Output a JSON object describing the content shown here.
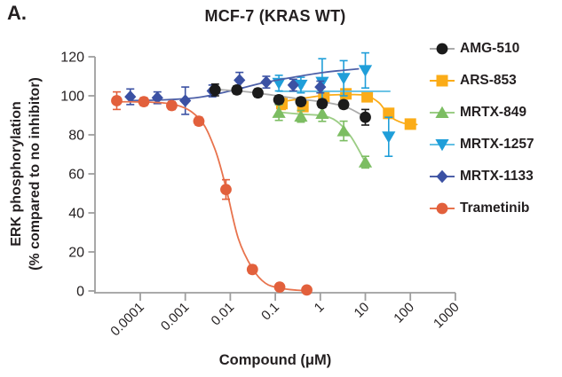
{
  "panel_label": "A.",
  "chart_data": {
    "type": "line",
    "title": "MCF-7 (KRAS WT)",
    "xlabel": "Compound (μM)",
    "ylabel_line1": "ERK phosphorylation",
    "ylabel_line2": "(% compared to no inhibitor)",
    "x_scale": "log",
    "xlim": [
      3e-05,
      1000
    ],
    "ylim": [
      0,
      120
    ],
    "x_ticks": [
      0.0001,
      0.001,
      0.01,
      0.1,
      1,
      10,
      100,
      1000
    ],
    "x_tick_labels": [
      "0.0001",
      "0.001",
      "0.01",
      "0.1",
      "1",
      "10",
      "100",
      "1000"
    ],
    "y_ticks": [
      0,
      20,
      40,
      60,
      80,
      100,
      120
    ],
    "axis_color": "#9e9e9e",
    "text_color": "#231f20",
    "legend_position": "right",
    "grid": false,
    "series": [
      {
        "name": "AMG-510",
        "marker": "circle",
        "color": "#1b1b1b",
        "line_color": "#ababab",
        "x": [
          0.0046,
          0.014,
          0.041,
          0.12,
          0.37,
          1.1,
          3.3,
          10
        ],
        "y": [
          103,
          103,
          101.5,
          98,
          97,
          96,
          95.5,
          89
        ],
        "err": [
          3,
          2,
          2,
          2,
          2,
          2,
          2,
          4
        ],
        "curve": [
          [
            0.0046,
            103.3
          ],
          [
            0.02,
            102.2
          ],
          [
            0.09,
            100.3
          ],
          [
            0.4,
            98.2
          ],
          [
            1.5,
            96.4
          ],
          [
            4,
            94
          ],
          [
            11.5,
            88.3
          ]
        ]
      },
      {
        "name": "ARS-853",
        "marker": "square",
        "color": "#fbac18",
        "line_color": "#fbac18",
        "x": [
          0.14,
          0.41,
          1.2,
          3.7,
          11,
          33,
          100
        ],
        "y": [
          96,
          94.5,
          99.5,
          101,
          99.5,
          91,
          85.5
        ],
        "err": [
          3,
          2,
          2,
          2,
          2,
          2,
          2
        ],
        "curve": [
          [
            0.14,
            97
          ],
          [
            0.45,
            98.8
          ],
          [
            1.3,
            100.3
          ],
          [
            4,
            100.6
          ],
          [
            10,
            100.2
          ],
          [
            20,
            96.5
          ],
          [
            35,
            89.5
          ],
          [
            70,
            86
          ],
          [
            140,
            85.3
          ]
        ]
      },
      {
        "name": "MRTX-849",
        "marker": "triangle-up",
        "color": "#7cbd62",
        "line_color": "#9ccd85",
        "x": [
          0.12,
          0.37,
          1.1,
          3.3,
          10
        ],
        "y": [
          91.4,
          89.5,
          90.9,
          82,
          66
        ],
        "err": [
          4,
          3,
          4,
          5,
          3
        ],
        "curve": [
          [
            0.12,
            91.6
          ],
          [
            0.37,
            90.6
          ],
          [
            1.1,
            89.8
          ],
          [
            2.3,
            87
          ],
          [
            4.8,
            79
          ],
          [
            10,
            66
          ]
        ]
      },
      {
        "name": "MRTX-1257",
        "marker": "triangle-down",
        "color": "#1f9ed9",
        "line_color": "#62c0e4",
        "x": [
          0.12,
          0.37,
          1.1,
          3.3,
          10,
          33
        ],
        "y": [
          106.5,
          105.5,
          107,
          109,
          113,
          79
        ],
        "err": [
          4,
          4,
          12,
          9,
          9,
          10
        ],
        "curve": [
          [
            0.11,
            102.3
          ],
          [
            35,
            102.3
          ]
        ]
      },
      {
        "name": "MRTX-1133",
        "marker": "diamond",
        "color": "#3b51a3",
        "line_color": "#4d60a8",
        "x": [
          6e-05,
          0.00024,
          0.001,
          0.004,
          0.016,
          0.063,
          0.25,
          1
        ],
        "y": [
          99.5,
          99,
          97.5,
          102.5,
          108,
          107,
          105.5,
          104.5
        ],
        "err": [
          4,
          3,
          7,
          3,
          4,
          3,
          3,
          3
        ],
        "curve": [
          [
            6e-05,
            97.5
          ],
          [
            0.0004,
            98
          ],
          [
            0.002,
            99.2
          ],
          [
            0.01,
            102.5
          ],
          [
            0.05,
            106.5
          ],
          [
            0.25,
            109.5
          ],
          [
            1.2,
            112
          ],
          [
            7,
            113.8
          ]
        ]
      },
      {
        "name": "Trametinib",
        "marker": "circle",
        "color": "#e2603c",
        "line_color": "#e8734d",
        "x": [
          3e-05,
          0.00012,
          0.0005,
          0.002,
          0.008,
          0.031,
          0.125,
          0.5
        ],
        "y": [
          97.5,
          97,
          95,
          87,
          52,
          11,
          2,
          0.5
        ],
        "err": [
          4.5,
          2,
          2,
          2,
          5,
          2,
          0,
          0
        ],
        "curve": [
          [
            3e-05,
            97
          ],
          [
            0.0005,
            95.8
          ],
          [
            0.002,
            88.5
          ],
          [
            0.0045,
            73
          ],
          [
            0.008,
            53
          ],
          [
            0.015,
            27
          ],
          [
            0.031,
            11.5
          ],
          [
            0.06,
            4
          ],
          [
            0.125,
            1.5
          ],
          [
            0.3,
            0.4
          ],
          [
            0.5,
            0.2
          ]
        ]
      }
    ]
  }
}
